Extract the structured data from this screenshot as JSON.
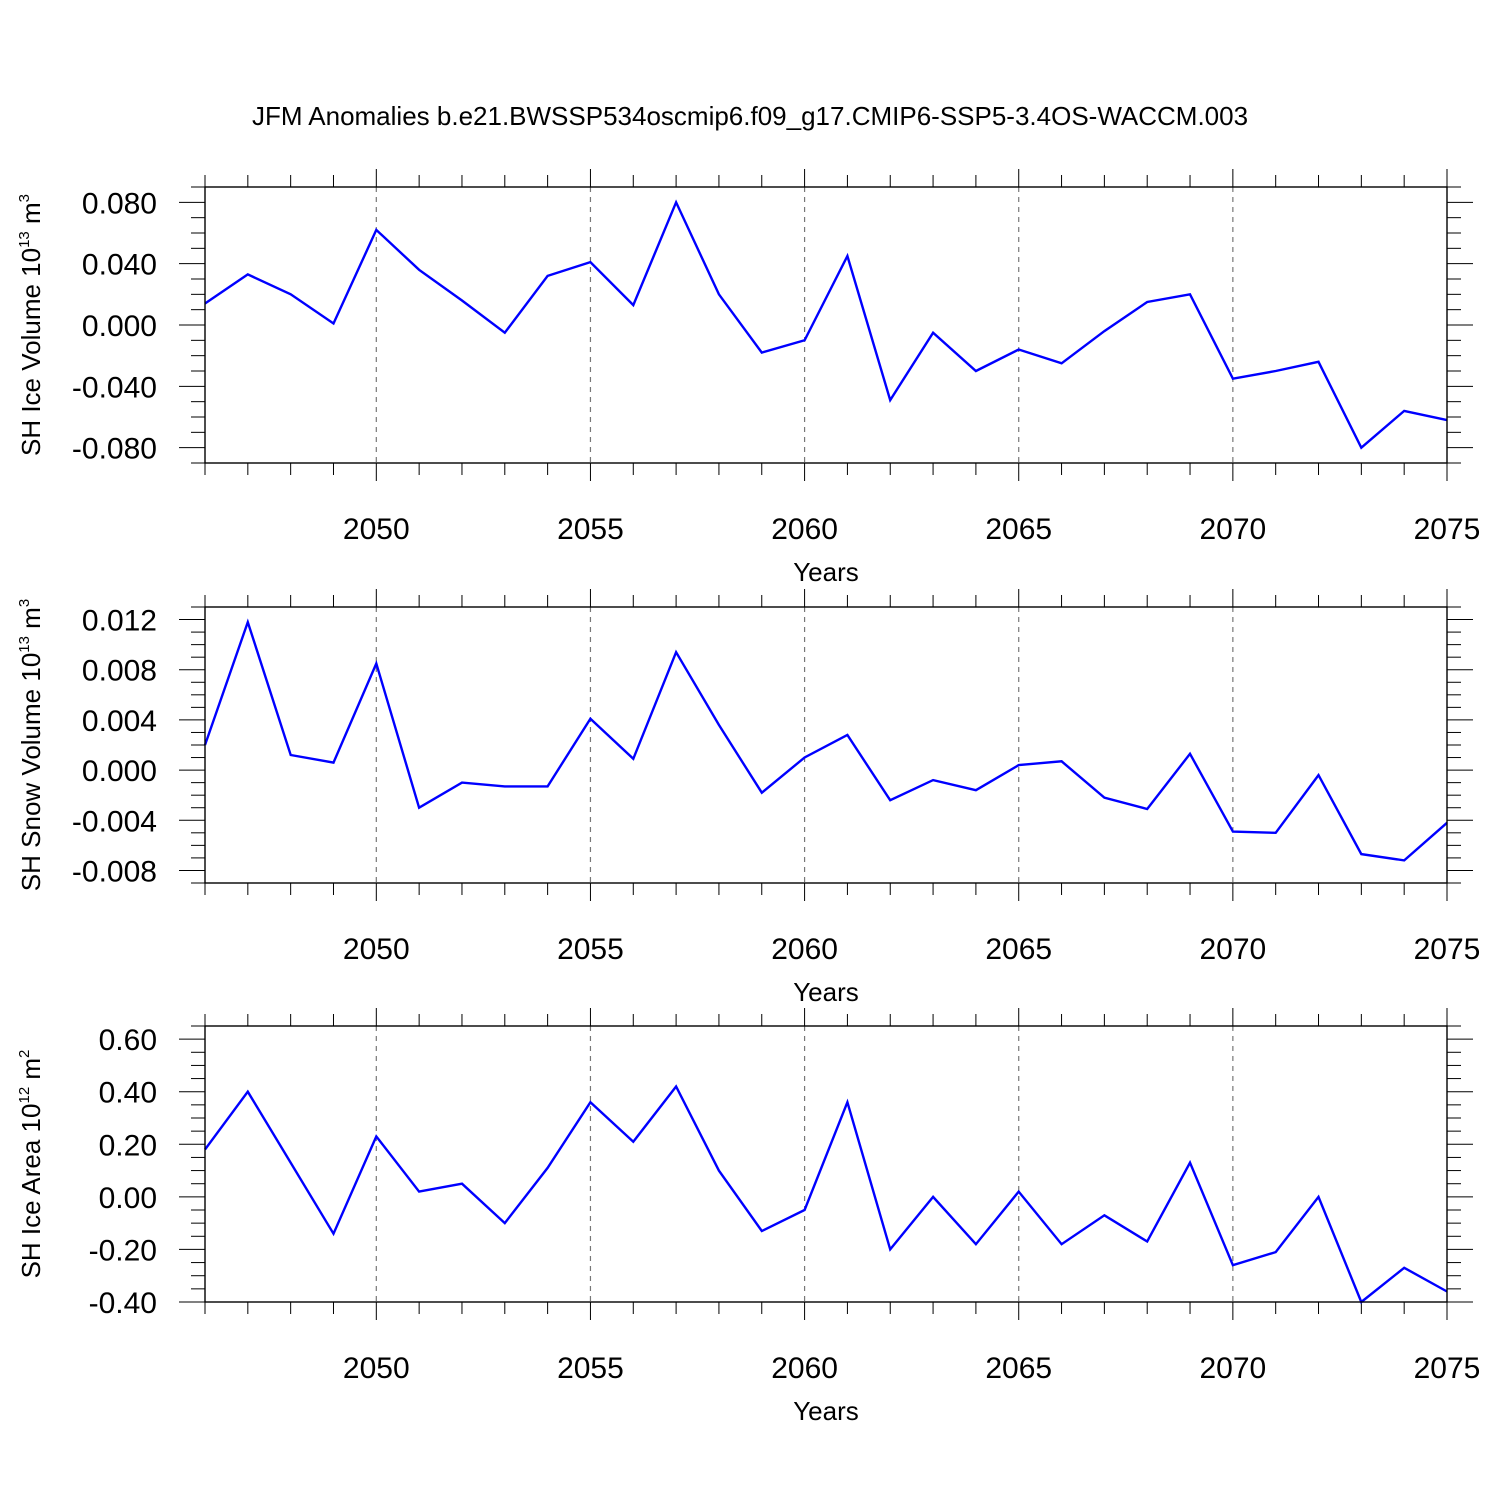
{
  "title": "JFM Anomalies b.e21.BWSSP534oscmip6.f09_g17.CMIP6-SSP5-3.4OS-WACCM.003",
  "chart_data": [
    {
      "type": "line",
      "ylabel": "SH Ice Volume 10",
      "ylabel_exp": "13",
      "ylabel_unit": " m",
      "ylabel_unit_exp": "3",
      "xlabel": "Years",
      "xlim": [
        2046,
        2075
      ],
      "ylim": [
        -0.09,
        0.09
      ],
      "xticks": [
        "2050",
        "2055",
        "2060",
        "2065",
        "2070",
        "2075"
      ],
      "yticks": [
        "0.080",
        "0.040",
        "0.000",
        "-0.040",
        "-0.080"
      ],
      "grid": "dashed vertical at major x ticks",
      "color": "#0000ff",
      "x": [
        2046,
        2047,
        2048,
        2049,
        2050,
        2051,
        2052,
        2053,
        2054,
        2055,
        2056,
        2057,
        2058,
        2059,
        2060,
        2061,
        2062,
        2063,
        2064,
        2065,
        2066,
        2067,
        2068,
        2069,
        2070,
        2071,
        2072,
        2073,
        2074,
        2075
      ],
      "values": [
        0.014,
        0.033,
        0.02,
        0.001,
        0.062,
        0.036,
        0.016,
        -0.005,
        0.032,
        0.041,
        0.013,
        0.08,
        0.02,
        -0.018,
        -0.01,
        0.045,
        -0.049,
        -0.005,
        -0.03,
        -0.016,
        -0.025,
        -0.004,
        0.015,
        0.02,
        -0.035,
        -0.03,
        -0.024,
        -0.08,
        -0.056,
        -0.062
      ]
    },
    {
      "type": "line",
      "ylabel": "SH Snow Volume 10",
      "ylabel_exp": "13",
      "ylabel_unit": " m",
      "ylabel_unit_exp": "3",
      "xlabel": "Years",
      "xlim": [
        2046,
        2075
      ],
      "ylim": [
        -0.009,
        0.013
      ],
      "xticks": [
        "2050",
        "2055",
        "2060",
        "2065",
        "2070",
        "2075"
      ],
      "yticks": [
        "0.012",
        "0.008",
        "0.004",
        "0.000",
        "-0.004",
        "-0.008"
      ],
      "grid": "dashed vertical at major x ticks",
      "color": "#0000ff",
      "x": [
        2046,
        2047,
        2048,
        2049,
        2050,
        2051,
        2052,
        2053,
        2054,
        2055,
        2056,
        2057,
        2058,
        2059,
        2060,
        2061,
        2062,
        2063,
        2064,
        2065,
        2066,
        2067,
        2068,
        2069,
        2070,
        2071,
        2072,
        2073,
        2074,
        2075
      ],
      "values": [
        0.002,
        0.0118,
        0.0012,
        0.0006,
        0.0085,
        -0.003,
        -0.001,
        -0.0013,
        -0.0013,
        0.0041,
        0.0009,
        0.0094,
        0.0036,
        -0.0018,
        0.001,
        0.0028,
        -0.0024,
        -0.0008,
        -0.0016,
        0.0004,
        0.0007,
        -0.0022,
        -0.0031,
        0.0013,
        -0.0049,
        -0.005,
        -0.0004,
        -0.0067,
        -0.0072,
        -0.0042
      ]
    },
    {
      "type": "line",
      "ylabel": "SH Ice Area 10",
      "ylabel_exp": "12",
      "ylabel_unit": " m",
      "ylabel_unit_exp": "2",
      "xlabel": "Years",
      "xlim": [
        2046,
        2075
      ],
      "ylim": [
        -0.4,
        0.65
      ],
      "xticks": [
        "2050",
        "2055",
        "2060",
        "2065",
        "2070",
        "2075"
      ],
      "yticks": [
        "0.60",
        "0.40",
        "0.20",
        "0.00",
        "-0.20",
        "-0.40"
      ],
      "grid": "dashed vertical at major x ticks",
      "color": "#0000ff",
      "x": [
        2046,
        2047,
        2048,
        2049,
        2050,
        2051,
        2052,
        2053,
        2054,
        2055,
        2056,
        2057,
        2058,
        2059,
        2060,
        2061,
        2062,
        2063,
        2064,
        2065,
        2066,
        2067,
        2068,
        2069,
        2070,
        2071,
        2072,
        2073,
        2074,
        2075
      ],
      "values": [
        0.18,
        0.4,
        0.13,
        -0.14,
        0.23,
        0.02,
        0.05,
        -0.1,
        0.11,
        0.36,
        0.21,
        0.42,
        0.1,
        -0.13,
        -0.05,
        0.36,
        -0.2,
        0.0,
        -0.18,
        0.02,
        -0.18,
        -0.07,
        -0.17,
        0.13,
        -0.26,
        -0.21,
        0.0,
        -0.4,
        -0.27,
        -0.36
      ]
    }
  ]
}
